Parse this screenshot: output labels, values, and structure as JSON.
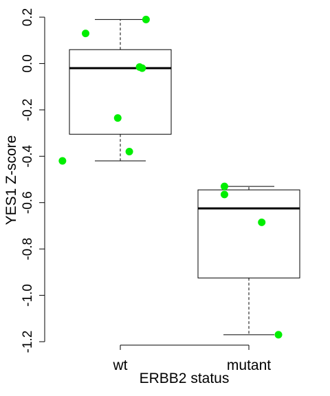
{
  "chart_data": {
    "type": "boxplot",
    "xlabel": "ERBB2 status",
    "ylabel": "YES1 Z-score",
    "ylim": [
      -1.2,
      0.2
    ],
    "yticks": [
      -1.2,
      -1.0,
      -0.8,
      -0.6,
      -0.4,
      -0.2,
      0.0,
      0.2
    ],
    "ytick_labels": [
      "-1.2",
      "-1.0",
      "-0.8",
      "-0.6",
      "-0.4",
      "-0.2",
      "0.0",
      "0.2"
    ],
    "categories": [
      "wt",
      "mutant"
    ],
    "boxes": [
      {
        "name": "wt",
        "whisker_low": -0.42,
        "q1": -0.305,
        "median": -0.02,
        "q3": 0.06,
        "whisker_high": 0.19
      },
      {
        "name": "mutant",
        "whisker_low": -1.17,
        "q1": -0.925,
        "median": -0.625,
        "q3": -0.545,
        "whisker_high": -0.53
      }
    ],
    "points": [
      {
        "group": "wt",
        "jitter": 0.73,
        "y": 0.13
      },
      {
        "group": "wt",
        "jitter": 1.2,
        "y": 0.19
      },
      {
        "group": "wt",
        "jitter": 1.15,
        "y": -0.015
      },
      {
        "group": "wt",
        "jitter": 1.17,
        "y": -0.02
      },
      {
        "group": "wt",
        "jitter": 0.98,
        "y": -0.235
      },
      {
        "group": "wt",
        "jitter": 1.07,
        "y": -0.38
      },
      {
        "group": "wt",
        "jitter": 0.55,
        "y": -0.42
      },
      {
        "group": "mutant",
        "jitter": 1.81,
        "y": -0.53
      },
      {
        "group": "mutant",
        "jitter": 1.81,
        "y": -0.565
      },
      {
        "group": "mutant",
        "jitter": 2.1,
        "y": -0.685
      },
      {
        "group": "mutant",
        "jitter": 2.23,
        "y": -1.17
      }
    ],
    "point_color": "#00ee00",
    "grid": false
  }
}
